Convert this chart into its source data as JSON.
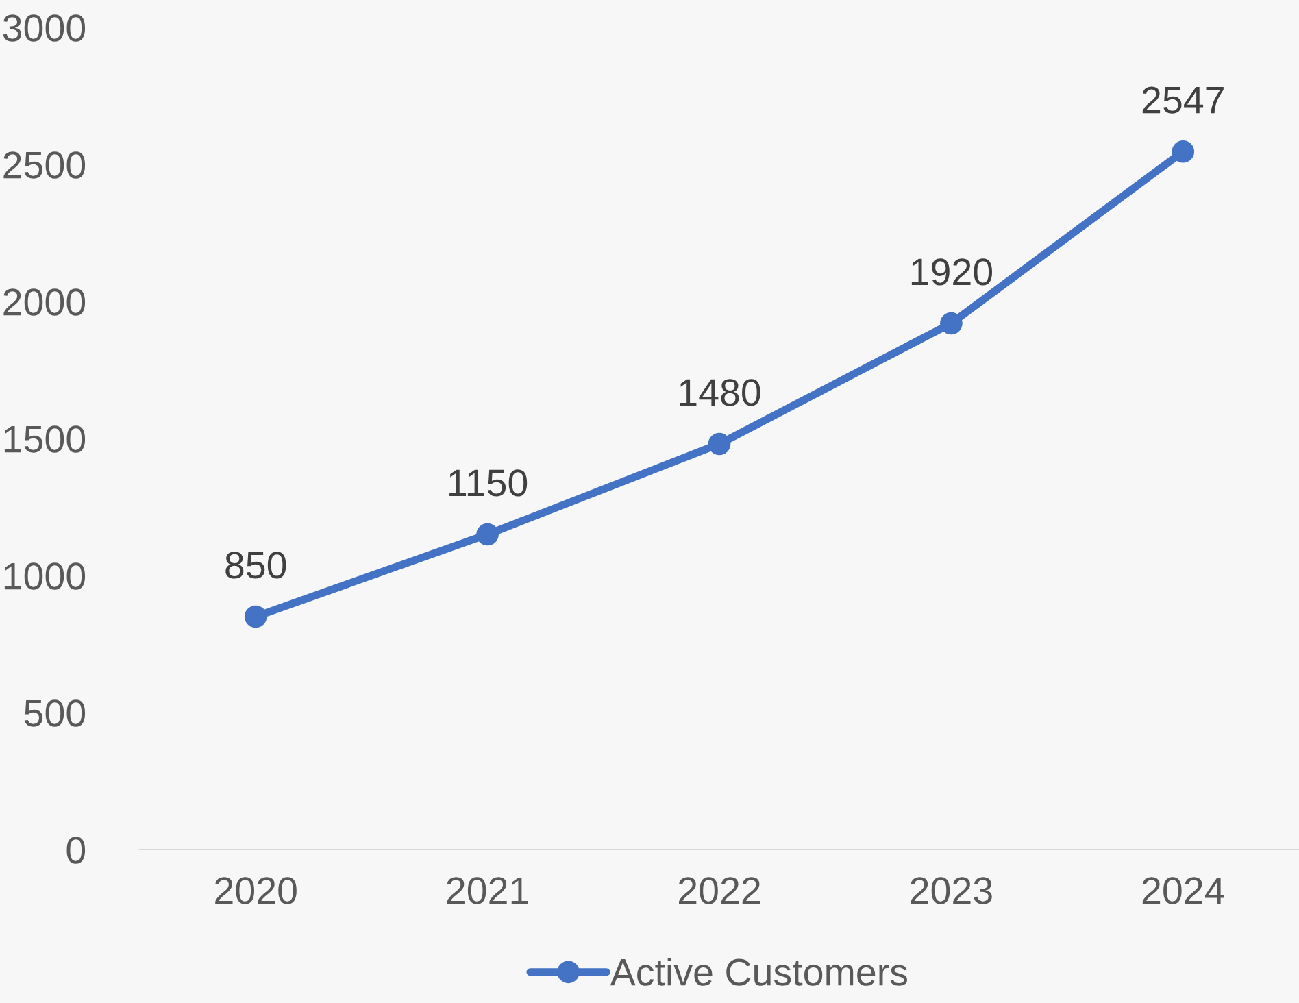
{
  "chart_data": {
    "type": "line",
    "categories": [
      "2020",
      "2021",
      "2022",
      "2023",
      "2024"
    ],
    "series": [
      {
        "name": "Active Customers",
        "color": "#4472c4",
        "values": [
          850,
          1150,
          1480,
          1920,
          2547
        ]
      }
    ],
    "ylim": [
      0,
      3000
    ],
    "yticks": [
      0,
      500,
      1000,
      1500,
      2000,
      2500,
      3000
    ],
    "data_labels": true,
    "marker": "circle",
    "line_style": "solid",
    "legend": "bottom",
    "grid": false
  }
}
